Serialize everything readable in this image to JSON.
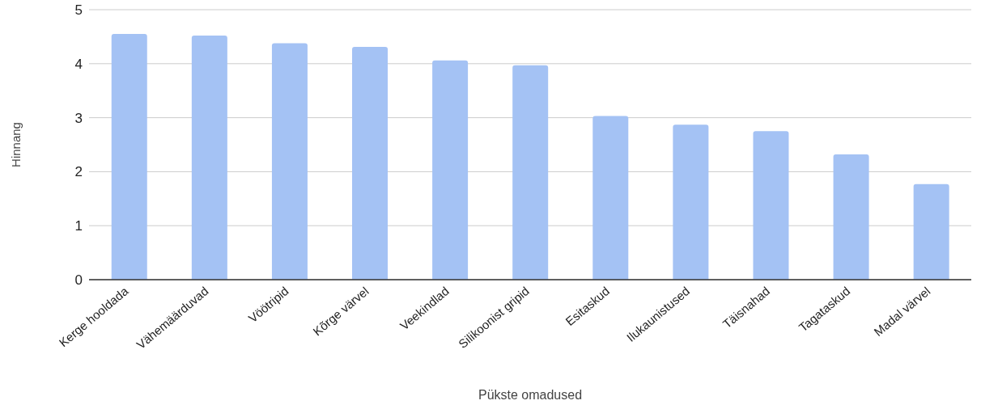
{
  "chart_data": {
    "type": "bar",
    "xlabel": "Pükste omadused",
    "ylabel": "Hinnang",
    "categories": [
      "Kerge hooldada",
      "Vähemäärduvad",
      "Vöötripid",
      "Kõrge värvel",
      "Veekindlad",
      "Silikoonist gripid",
      "Esitaskud",
      "Ilukaunistused",
      "Täisnahad",
      "Tagataskud",
      "Madal värvel"
    ],
    "values": [
      4.55,
      4.52,
      4.38,
      4.31,
      4.06,
      3.97,
      3.03,
      2.87,
      2.75,
      2.32,
      1.77
    ],
    "color": "#a4c2f4",
    "ylim": [
      0,
      5
    ],
    "yticks": [
      0,
      1,
      2,
      3,
      4,
      5
    ],
    "grid": "y"
  }
}
